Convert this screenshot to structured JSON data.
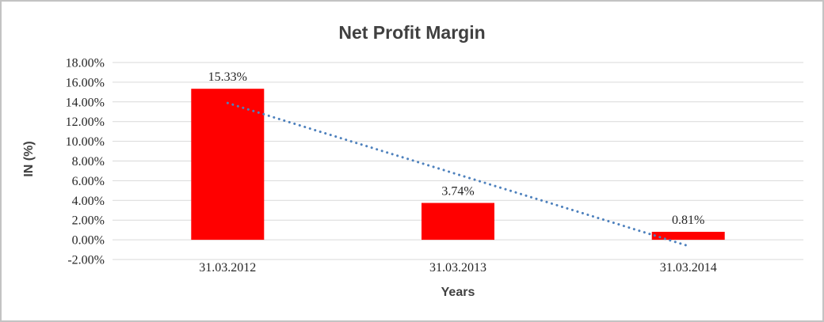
{
  "chart_data": {
    "type": "bar",
    "title": "Net Profit Margin",
    "xlabel": "Years",
    "ylabel": "IN (%)",
    "categories": [
      "31.03.2012",
      "31.03.2013",
      "31.03.2014"
    ],
    "series": [
      {
        "name": "Net Profit Margin",
        "values": [
          15.33,
          3.74,
          0.81
        ],
        "data_labels": [
          "15.33%",
          "3.74%",
          "0.81%"
        ],
        "color": "#ff0000"
      }
    ],
    "ylim": [
      -2,
      18
    ],
    "ytick_values": [
      18,
      16,
      14,
      12,
      10,
      8,
      6,
      4,
      2,
      0,
      -2
    ],
    "ytick_labels": [
      "18.00%",
      "16.00%",
      "14.00%",
      "12.00%",
      "10.00%",
      "8.00%",
      "6.00%",
      "4.00%",
      "2.00%",
      "0.00%",
      "-2.00%"
    ],
    "grid": true,
    "gridline_color": "#d9d9d9",
    "legend": "none",
    "trendline": {
      "type": "linear",
      "style": "dotted",
      "color": "#4e81bd",
      "start_value": 13.89,
      "end_value": -0.63
    },
    "title_color": "#404040",
    "axis_title_color": "#404040",
    "tick_color": "#262626",
    "background_color": "#ffffff"
  }
}
